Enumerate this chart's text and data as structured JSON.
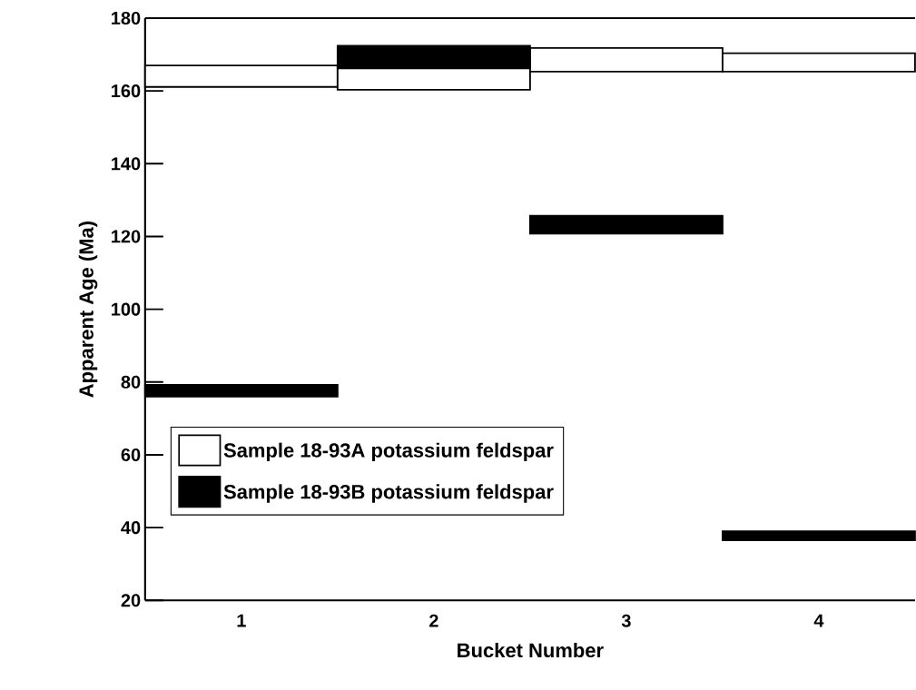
{
  "chart_data": {
    "type": "bar",
    "xlabel": "Bucket Number",
    "ylabel": "Apparent Age (Ma)",
    "categories": [
      "1",
      "2",
      "3",
      "4"
    ],
    "series": [
      {
        "name": "Sample 18-93A potassium feldspar",
        "color": "#ffffff",
        "base": [
          161.1,
          160.3,
          165.3,
          165.3
        ],
        "values": [
          5.9,
          6.2,
          6.5,
          5.1
        ]
      },
      {
        "name": "Sample 18-93B potassium feldspar",
        "color": "#000000",
        "base": [
          76,
          166.2,
          120.8,
          36.5
        ],
        "values": [
          3.2,
          6.2,
          4.9,
          2.5
        ]
      }
    ],
    "ylim": [
      20,
      180
    ],
    "yticks": [
      20,
      40,
      60,
      80,
      100,
      120,
      140,
      160,
      180
    ],
    "legend": "bottom left"
  }
}
